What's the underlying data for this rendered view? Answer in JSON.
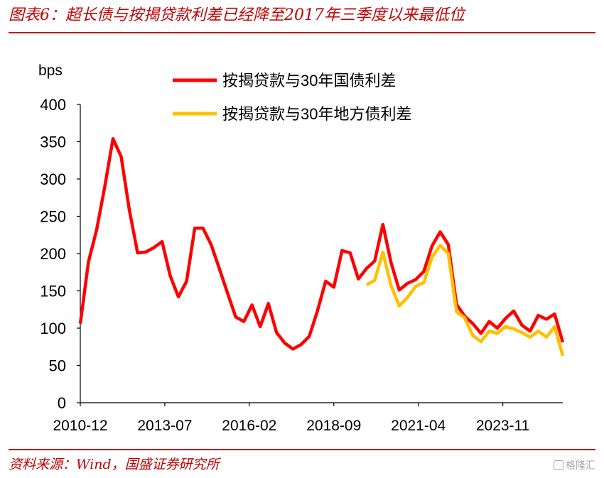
{
  "figure": {
    "title": "图表6：超长债与按揭贷款利差已经降至2017年三季度以来最低位",
    "source": "资料来源：Wind，国盛证券研究所",
    "watermark": "格隆汇"
  },
  "colors": {
    "accent": "#c00000",
    "series_1": "#ff0000",
    "series_2": "#ffc000"
  },
  "chart_data": {
    "type": "line",
    "unit_label": "bps",
    "ylim": [
      0,
      400
    ],
    "yticks": [
      0,
      50,
      100,
      150,
      200,
      250,
      300,
      350,
      400
    ],
    "xticks": [
      "2010-12",
      "2013-07",
      "2016-02",
      "2018-09",
      "2021-04",
      "2023-11"
    ],
    "grid": false,
    "legend_position": "top",
    "series": [
      {
        "name": "按揭贷款与30年国债利差",
        "color": "#ff0000",
        "points": [
          [
            "2010-12",
            106
          ],
          [
            "2011-03",
            189
          ],
          [
            "2011-06",
            232
          ],
          [
            "2011-09",
            290
          ],
          [
            "2011-12",
            354
          ],
          [
            "2012-03",
            330
          ],
          [
            "2012-06",
            258
          ],
          [
            "2012-09",
            201
          ],
          [
            "2012-12",
            202
          ],
          [
            "2013-03",
            208
          ],
          [
            "2013-06",
            216
          ],
          [
            "2013-09",
            170
          ],
          [
            "2013-12",
            142
          ],
          [
            "2014-03",
            163
          ],
          [
            "2014-06",
            234
          ],
          [
            "2014-09",
            234
          ],
          [
            "2014-12",
            212
          ],
          [
            "2015-03",
            180
          ],
          [
            "2015-06",
            147
          ],
          [
            "2015-09",
            115
          ],
          [
            "2015-12",
            109
          ],
          [
            "2016-03",
            131
          ],
          [
            "2016-06",
            102
          ],
          [
            "2016-09",
            133
          ],
          [
            "2016-12",
            94
          ],
          [
            "2017-03",
            80
          ],
          [
            "2017-06",
            72
          ],
          [
            "2017-09",
            78
          ],
          [
            "2017-12",
            89
          ],
          [
            "2018-03",
            123
          ],
          [
            "2018-06",
            163
          ],
          [
            "2018-09",
            155
          ],
          [
            "2018-12",
            204
          ],
          [
            "2019-03",
            201
          ],
          [
            "2019-06",
            166
          ],
          [
            "2019-09",
            180
          ],
          [
            "2019-12",
            190
          ],
          [
            "2020-03",
            239
          ],
          [
            "2020-06",
            188
          ],
          [
            "2020-09",
            151
          ],
          [
            "2020-12",
            160
          ],
          [
            "2021-03",
            165
          ],
          [
            "2021-06",
            176
          ],
          [
            "2021-09",
            210
          ],
          [
            "2021-12",
            229
          ],
          [
            "2022-03",
            212
          ],
          [
            "2022-06",
            132
          ],
          [
            "2022-09",
            116
          ],
          [
            "2022-12",
            106
          ],
          [
            "2023-03",
            93
          ],
          [
            "2023-06",
            109
          ],
          [
            "2023-09",
            100
          ],
          [
            "2023-12",
            113
          ],
          [
            "2024-03",
            123
          ],
          [
            "2024-06",
            104
          ],
          [
            "2024-09",
            96
          ],
          [
            "2024-12",
            117
          ],
          [
            "2025-03",
            112
          ],
          [
            "2025-06",
            119
          ],
          [
            "2025-09",
            81
          ]
        ]
      },
      {
        "name": "按揭贷款与30年地方债利差",
        "color": "#ffc000",
        "points": [
          [
            "2019-09",
            158
          ],
          [
            "2019-12",
            164
          ],
          [
            "2020-03",
            202
          ],
          [
            "2020-06",
            157
          ],
          [
            "2020-09",
            130
          ],
          [
            "2020-12",
            141
          ],
          [
            "2021-03",
            156
          ],
          [
            "2021-06",
            161
          ],
          [
            "2021-09",
            195
          ],
          [
            "2021-12",
            211
          ],
          [
            "2022-03",
            200
          ],
          [
            "2022-06",
            122
          ],
          [
            "2022-09",
            114
          ],
          [
            "2022-12",
            90
          ],
          [
            "2023-03",
            82
          ],
          [
            "2023-06",
            96
          ],
          [
            "2023-09",
            93
          ],
          [
            "2023-12",
            102
          ],
          [
            "2024-03",
            99
          ],
          [
            "2024-06",
            94
          ],
          [
            "2024-09",
            88
          ],
          [
            "2024-12",
            96
          ],
          [
            "2025-03",
            88
          ],
          [
            "2025-06",
            102
          ],
          [
            "2025-09",
            63
          ]
        ]
      }
    ]
  }
}
